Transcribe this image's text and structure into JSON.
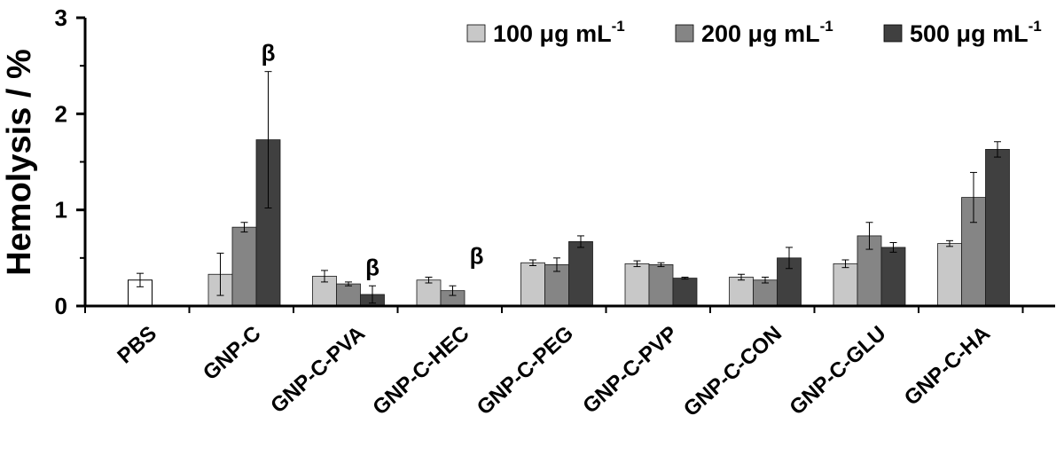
{
  "chart_data": {
    "type": "bar",
    "ylabel": "Hemolysis / %",
    "xlabel": "",
    "ylim": [
      0,
      3
    ],
    "yticks": [
      0,
      1,
      2,
      3
    ],
    "grid": false,
    "legend_position": "top-right",
    "categories": [
      "PBS",
      "GNP-C",
      "GNP-C-PVA",
      "GNP-C-HEC",
      "GNP-C-PEG",
      "GNP-C-PVP",
      "GNP-C-CON",
      "GNP-C-GLU",
      "GNP-C-HA"
    ],
    "control": {
      "category": "PBS",
      "value": 0.27,
      "error": 0.07,
      "color": "#ffffff"
    },
    "series": [
      {
        "name": "100 μg mL",
        "unit_superscript": "-1",
        "color": "#c8c8c8",
        "values": [
          null,
          0.33,
          0.31,
          0.27,
          0.45,
          0.44,
          0.3,
          0.44,
          0.65
        ],
        "errors": [
          null,
          0.22,
          0.06,
          0.03,
          0.03,
          0.03,
          0.03,
          0.04,
          0.03
        ]
      },
      {
        "name": "200 μg mL",
        "unit_superscript": "-1",
        "color": "#858585",
        "values": [
          null,
          0.82,
          0.23,
          0.16,
          0.43,
          0.43,
          0.27,
          0.73,
          1.13
        ],
        "errors": [
          null,
          0.05,
          0.02,
          0.05,
          0.07,
          0.02,
          0.03,
          0.14,
          0.26
        ]
      },
      {
        "name": "500 μg mL",
        "unit_superscript": "-1",
        "color": "#404040",
        "values": [
          null,
          1.73,
          0.12,
          null,
          0.67,
          0.29,
          0.5,
          0.61,
          1.63
        ],
        "errors": [
          null,
          0.71,
          0.09,
          null,
          0.06,
          0.01,
          0.11,
          0.05,
          0.08
        ]
      }
    ],
    "annotations": [
      {
        "text": "β",
        "category": "GNP-C",
        "series": 2
      },
      {
        "text": "β",
        "category": "GNP-C-PVA",
        "series": 2
      },
      {
        "text": "β",
        "category": "GNP-C-HEC",
        "series": 2
      }
    ]
  }
}
